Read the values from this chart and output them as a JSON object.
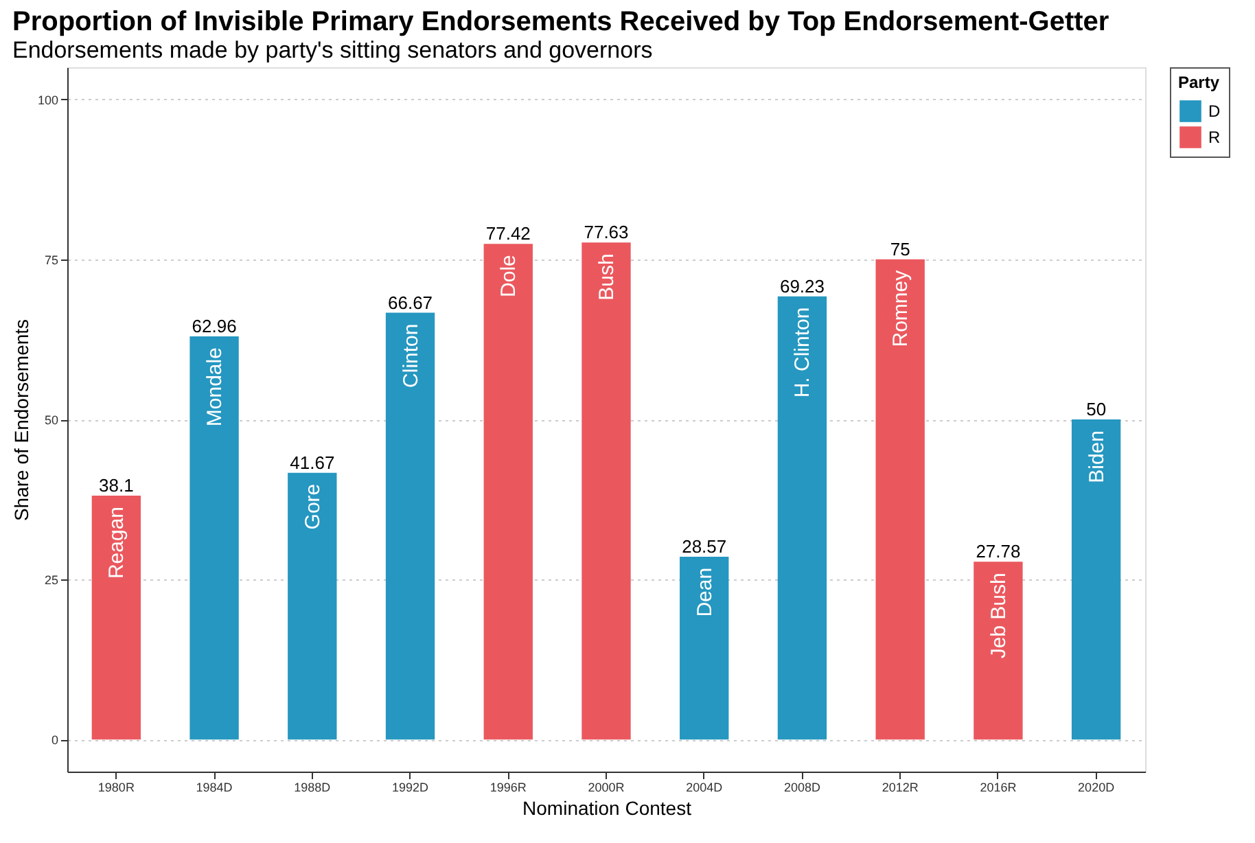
{
  "chart_data": {
    "type": "bar",
    "title": "Proportion of Invisible Primary Endorsements Received by Top Endorsement-Getter",
    "subtitle": "Endorsements made by party's sitting senators and governors",
    "xlabel": "Nomination Contest",
    "ylabel": "Share of Endorsements",
    "legend_title": "Party",
    "categories": [
      "1980R",
      "1984D",
      "1988D",
      "1992D",
      "1996R",
      "2000R",
      "2004D",
      "2008D",
      "2012R",
      "2016R",
      "2020D"
    ],
    "series": [
      {
        "name": "D",
        "color": "#2597c0",
        "values": [
          null,
          62.96,
          41.67,
          66.67,
          null,
          null,
          28.57,
          69.23,
          null,
          null,
          50
        ]
      },
      {
        "name": "R",
        "color": "#ea585e",
        "values": [
          38.1,
          null,
          null,
          null,
          77.42,
          77.63,
          null,
          null,
          75,
          27.78,
          null
        ]
      }
    ],
    "ylim": [
      -5,
      105
    ],
    "yticks": [
      0,
      25,
      50,
      75,
      100
    ],
    "grid": "y",
    "legend": "right",
    "data_labels": true,
    "annotations": [
      {
        "text": "Reagan",
        "x": "1980R",
        "y": 38.1
      },
      {
        "text": "Mondale",
        "x": "1984D",
        "y": 62.96
      },
      {
        "text": "Gore",
        "x": "1988D",
        "y": 41.67
      },
      {
        "text": "Clinton",
        "x": "1992D",
        "y": 66.67
      },
      {
        "text": "Dole",
        "x": "1996R",
        "y": 77.42
      },
      {
        "text": "Bush",
        "x": "2000R",
        "y": 77.63
      },
      {
        "text": "Dean",
        "x": "2004D",
        "y": 28.57
      },
      {
        "text": "H. Clinton",
        "x": "2008D",
        "y": 69.23
      },
      {
        "text": "Romney",
        "x": "2012R",
        "y": 75
      },
      {
        "text": "Jeb Bush",
        "x": "2016R",
        "y": 27.78
      },
      {
        "text": "Biden",
        "x": "2020D",
        "y": 50
      }
    ]
  }
}
